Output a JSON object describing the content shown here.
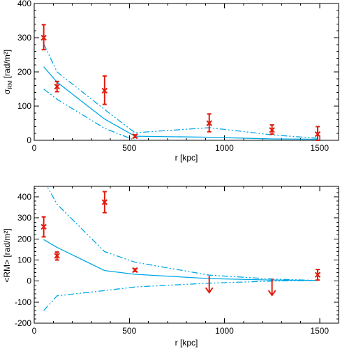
{
  "chart_data": [
    {
      "type": "line",
      "xlabel": "r [kpc]",
      "ylabel": "σ_RM [rad/m²]",
      "ylabel_main": "σ",
      "ylabel_sub": "RM",
      "ylabel_unit": "[rad/m²]",
      "xlim": [
        0,
        1600
      ],
      "ylim": [
        0,
        400
      ],
      "xticks": [
        0,
        500,
        1000,
        1500
      ],
      "yticks": [
        0,
        100,
        200,
        300,
        400
      ],
      "colors": {
        "model": "#00a8e6",
        "data": "#e01b0c"
      },
      "observations": [
        {
          "x": 50,
          "y": 300,
          "lo": 265,
          "hi": 338
        },
        {
          "x": 120,
          "y": 157,
          "lo": 142,
          "hi": 172
        },
        {
          "x": 370,
          "y": 145,
          "lo": 105,
          "hi": 188
        },
        {
          "x": 530,
          "y": 12,
          "lo": 8,
          "hi": 16
        },
        {
          "x": 920,
          "y": 50,
          "lo": 25,
          "hi": 77
        },
        {
          "x": 1250,
          "y": 30,
          "lo": 18,
          "hi": 45
        },
        {
          "x": 1490,
          "y": 18,
          "lo": 0,
          "hi": 40
        }
      ],
      "series": [
        {
          "style": "solid",
          "x": [
            50,
            120,
            370,
            530,
            920,
            1250,
            1490
          ],
          "y": [
            215,
            170,
            62,
            12,
            9,
            4,
            3
          ]
        },
        {
          "style": "dash-dot-dot",
          "x": [
            50,
            120,
            370,
            530,
            920,
            1250,
            1490
          ],
          "y": [
            282,
            200,
            90,
            22,
            37,
            16,
            6
          ]
        },
        {
          "style": "dash-dot-dot",
          "x": [
            50,
            120,
            370,
            530,
            920,
            1250,
            1490
          ],
          "y": [
            150,
            120,
            35,
            0,
            -20,
            -20,
            -20
          ]
        }
      ]
    },
    {
      "type": "line",
      "xlabel": "r [kpc]",
      "ylabel": "<RM> [rad/m²]",
      "xlim": [
        0,
        1600
      ],
      "ylim": [
        -200,
        450
      ],
      "xticks": [
        0,
        500,
        1000,
        1500
      ],
      "yticks": [
        -200,
        -100,
        0,
        100,
        200,
        300,
        400
      ],
      "colors": {
        "model": "#00a8e6",
        "data": "#e01b0c"
      },
      "observations": [
        {
          "x": 50,
          "y": 258,
          "lo": 210,
          "hi": 305
        },
        {
          "x": 120,
          "y": 120,
          "lo": 100,
          "hi": 138
        },
        {
          "x": 370,
          "y": 375,
          "lo": 325,
          "hi": 425
        },
        {
          "x": 530,
          "y": 52,
          "lo": 46,
          "hi": 58
        },
        {
          "x": 1490,
          "y": 30,
          "lo": 5,
          "hi": 55
        }
      ],
      "upper_limits": [
        {
          "x": 920,
          "y": 25
        },
        {
          "x": 1250,
          "y": 12
        }
      ],
      "series": [
        {
          "style": "solid",
          "x": [
            50,
            120,
            370,
            530,
            920,
            1250,
            1490
          ],
          "y": [
            197,
            160,
            50,
            32,
            12,
            5,
            3
          ]
        },
        {
          "style": "dash-dot-dot",
          "x": [
            50,
            120,
            370,
            530,
            920,
            1250,
            1490
          ],
          "y": [
            480,
            365,
            140,
            90,
            28,
            10,
            3
          ]
        },
        {
          "style": "dash-dot-dot",
          "x": [
            50,
            120,
            370,
            530,
            920,
            1250,
            1490
          ],
          "y": [
            -140,
            -70,
            -45,
            -28,
            -10,
            0,
            3
          ]
        }
      ]
    }
  ]
}
